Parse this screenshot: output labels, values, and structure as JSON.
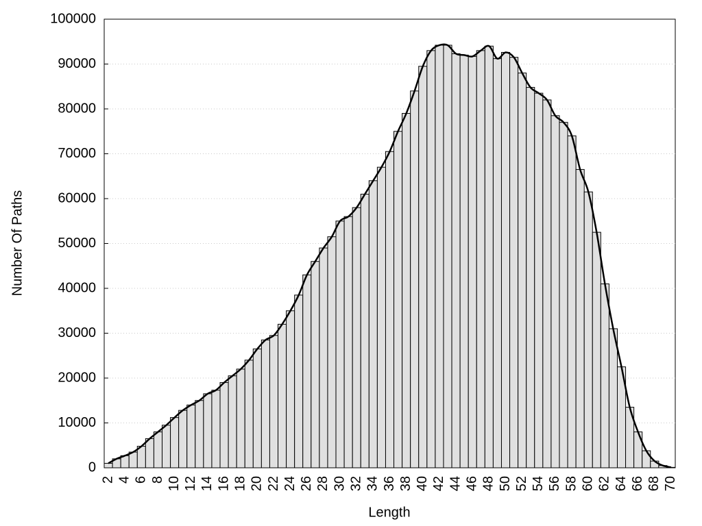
{
  "chart_data": {
    "type": "bar",
    "xlabel": "Length",
    "ylabel": "Number Of Paths",
    "categories": [
      2,
      null,
      4,
      null,
      6,
      null,
      8,
      null,
      10,
      null,
      12,
      null,
      14,
      null,
      16,
      null,
      18,
      null,
      20,
      null,
      22,
      null,
      24,
      null,
      26,
      null,
      28,
      null,
      30,
      null,
      32,
      null,
      34,
      null,
      36,
      null,
      38,
      null,
      40,
      null,
      42,
      null,
      44,
      null,
      46,
      null,
      48,
      null,
      50,
      null,
      52,
      null,
      54,
      null,
      56,
      null,
      58,
      null,
      60,
      null,
      62,
      null,
      64,
      null,
      66,
      null,
      68,
      null,
      70
    ],
    "values": [
      1000,
      2000,
      2700,
      3500,
      4800,
      6500,
      8000,
      9500,
      11200,
      12800,
      14000,
      15000,
      16500,
      17300,
      19000,
      20500,
      22000,
      24000,
      26500,
      28500,
      29500,
      32000,
      35000,
      38500,
      43000,
      46000,
      49000,
      51500,
      55000,
      56000,
      58000,
      61000,
      64000,
      67000,
      70500,
      75000,
      79000,
      84000,
      89500,
      93000,
      94200,
      94200,
      92300,
      92000,
      91700,
      93000,
      94000,
      91200,
      92600,
      91500,
      88000,
      84800,
      83500,
      82000,
      78500,
      77000,
      74000,
      66500,
      61500,
      52500,
      41000,
      31000,
      22500,
      13500,
      8000,
      3800,
      1500,
      500,
      100
    ],
    "color": "#e0e0e0",
    "line_color": "#000000",
    "ylim": [
      0,
      100000
    ],
    "yticks": [
      0,
      10000,
      20000,
      30000,
      40000,
      50000,
      60000,
      70000,
      80000,
      90000,
      100000
    ],
    "grid": true
  }
}
